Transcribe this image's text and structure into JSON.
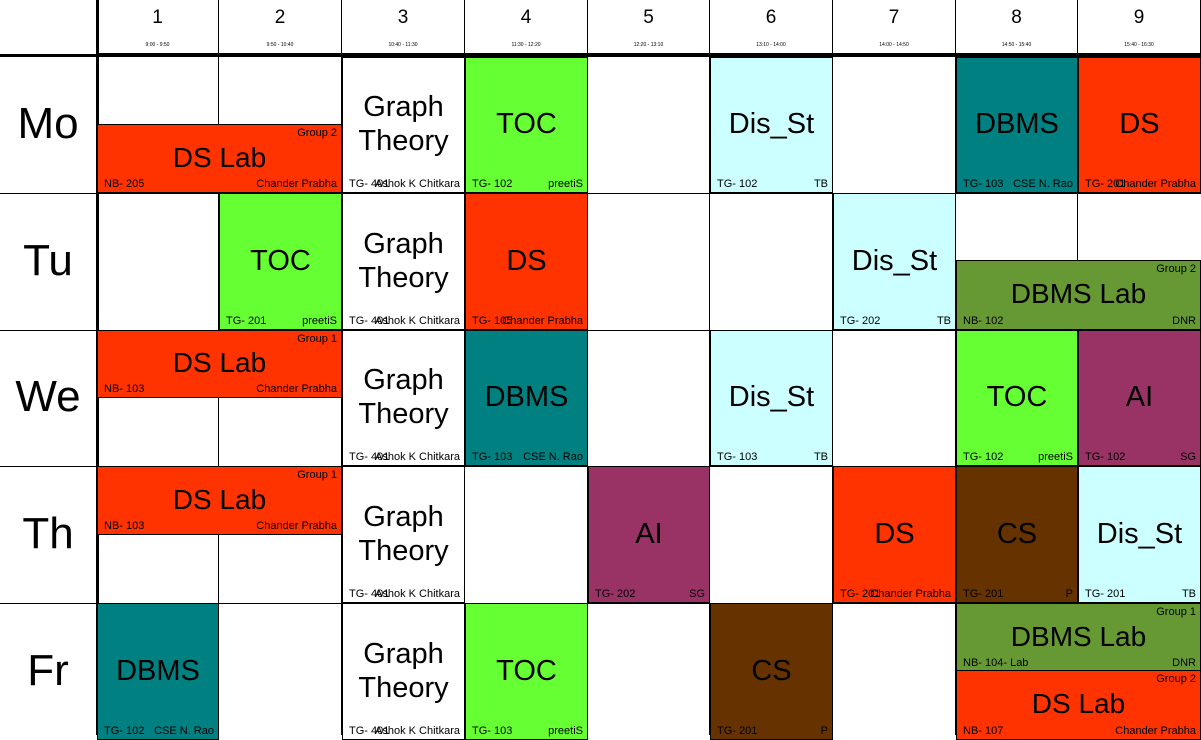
{
  "colors": {
    "ds": "#ff3300",
    "toc": "#66ff33",
    "dbms": "#008080",
    "disst": "#ccffff",
    "ai": "#993366",
    "cs": "#663300",
    "dbms_lab": "#669933",
    "white": "#ffffff"
  },
  "periods": [
    {
      "num": "1",
      "time": "9:00 - 9:50"
    },
    {
      "num": "2",
      "time": "9:50 - 10:40"
    },
    {
      "num": "3",
      "time": "10:40 - 11:30"
    },
    {
      "num": "4",
      "time": "11:30 - 12:20"
    },
    {
      "num": "5",
      "time": "12:20 - 13:10"
    },
    {
      "num": "6",
      "time": "13:10 - 14:00"
    },
    {
      "num": "7",
      "time": "14:00 - 14:50"
    },
    {
      "num": "8",
      "time": "14:50 - 15:40"
    },
    {
      "num": "9",
      "time": "15:40 - 16:30"
    }
  ],
  "days": [
    "Mo",
    "Tu",
    "We",
    "Th",
    "Fr"
  ],
  "blocks": [
    {
      "day": 0,
      "col": 1,
      "span": 2,
      "half": "bottom",
      "subject": "DS Lab",
      "room": "NB- 205",
      "teacher": "Chander Prabha",
      "group": "Group 2",
      "color": "ds"
    },
    {
      "day": 0,
      "col": 3,
      "span": 1,
      "subject": "Graph\nTheory",
      "room": "TG- 401",
      "teacher": "Ashok K Chitkara",
      "color": "white"
    },
    {
      "day": 0,
      "col": 4,
      "span": 1,
      "subject": "TOC",
      "room": "TG- 102",
      "teacher": "preetiS",
      "color": "toc"
    },
    {
      "day": 0,
      "col": 6,
      "span": 1,
      "subject": "Dis_St",
      "room": "TG- 102",
      "teacher": "TB",
      "color": "disst"
    },
    {
      "day": 0,
      "col": 8,
      "span": 1,
      "subject": "DBMS",
      "room": "TG- 103",
      "teacher": "CSE N. Rao",
      "color": "dbms"
    },
    {
      "day": 0,
      "col": 9,
      "span": 1,
      "subject": "DS",
      "room": "TG- 201",
      "teacher": "Chander Prabha",
      "color": "ds"
    },
    {
      "day": 1,
      "col": 2,
      "span": 1,
      "subject": "TOC",
      "room": "TG- 201",
      "teacher": "preetiS",
      "color": "toc"
    },
    {
      "day": 1,
      "col": 3,
      "span": 1,
      "subject": "Graph\nTheory",
      "room": "TG- 401",
      "teacher": "Ashok K Chitkara",
      "color": "white"
    },
    {
      "day": 1,
      "col": 4,
      "span": 1,
      "subject": "DS",
      "room": "TG- 105",
      "teacher": "Chander Prabha",
      "color": "ds"
    },
    {
      "day": 1,
      "col": 7,
      "span": 1,
      "subject": "Dis_St",
      "room": "TG- 202",
      "teacher": "TB",
      "color": "disst"
    },
    {
      "day": 1,
      "col": 8,
      "span": 2,
      "half": "bottom",
      "subject": "DBMS Lab",
      "room": "NB- 102",
      "teacher": "DNR",
      "group": "Group 2",
      "color": "dbms_lab"
    },
    {
      "day": 2,
      "col": 1,
      "span": 2,
      "half": "top",
      "subject": "DS Lab",
      "room": "NB- 103",
      "teacher": "Chander Prabha",
      "group": "Group 1",
      "color": "ds"
    },
    {
      "day": 2,
      "col": 3,
      "span": 1,
      "subject": "Graph\nTheory",
      "room": "TG- 401",
      "teacher": "Ashok K Chitkara",
      "color": "white"
    },
    {
      "day": 2,
      "col": 4,
      "span": 1,
      "subject": "DBMS",
      "room": "TG- 103",
      "teacher": "CSE N. Rao",
      "color": "dbms"
    },
    {
      "day": 2,
      "col": 6,
      "span": 1,
      "subject": "Dis_St",
      "room": "TG- 103",
      "teacher": "TB",
      "color": "disst"
    },
    {
      "day": 2,
      "col": 8,
      "span": 1,
      "subject": "TOC",
      "room": "TG- 102",
      "teacher": "preetiS",
      "color": "toc"
    },
    {
      "day": 2,
      "col": 9,
      "span": 1,
      "subject": "AI",
      "room": "TG- 102",
      "teacher": "SG",
      "color": "ai"
    },
    {
      "day": 3,
      "col": 1,
      "span": 2,
      "half": "top",
      "subject": "DS Lab",
      "room": "NB- 103",
      "teacher": "Chander Prabha",
      "group": "Group 1",
      "color": "ds"
    },
    {
      "day": 3,
      "col": 3,
      "span": 1,
      "subject": "Graph\nTheory",
      "room": "TG- 401",
      "teacher": "Ashok K Chitkara",
      "color": "white"
    },
    {
      "day": 3,
      "col": 5,
      "span": 1,
      "subject": "AI",
      "room": "TG- 202",
      "teacher": "SG",
      "color": "ai"
    },
    {
      "day": 3,
      "col": 7,
      "span": 1,
      "subject": "DS",
      "room": "TG- 201",
      "teacher": "Chander Prabha",
      "color": "ds"
    },
    {
      "day": 3,
      "col": 8,
      "span": 1,
      "subject": "CS",
      "room": "TG- 201",
      "teacher": "P",
      "color": "cs"
    },
    {
      "day": 3,
      "col": 9,
      "span": 1,
      "subject": "Dis_St",
      "room": "TG- 201",
      "teacher": "TB",
      "color": "disst"
    },
    {
      "day": 4,
      "col": 1,
      "span": 1,
      "subject": "DBMS",
      "room": "TG- 102",
      "teacher": "CSE N. Rao",
      "color": "dbms"
    },
    {
      "day": 4,
      "col": 3,
      "span": 1,
      "subject": "Graph\nTheory",
      "room": "TG- 401",
      "teacher": "Ashok K Chitkara",
      "color": "white"
    },
    {
      "day": 4,
      "col": 4,
      "span": 1,
      "subject": "TOC",
      "room": "TG- 103",
      "teacher": "preetiS",
      "color": "toc"
    },
    {
      "day": 4,
      "col": 6,
      "span": 1,
      "subject": "CS",
      "room": "TG- 201",
      "teacher": "P",
      "color": "cs"
    },
    {
      "day": 4,
      "col": 8,
      "span": 2,
      "half": "top",
      "subject": "DBMS Lab",
      "room": "NB- 104- Lab",
      "teacher": "DNR",
      "group": "Group 1",
      "color": "dbms_lab"
    },
    {
      "day": 4,
      "col": 8,
      "span": 2,
      "half": "bottom",
      "subject": "DS Lab",
      "room": "NB- 107",
      "teacher": "Chander Prabha",
      "group": "Group 2",
      "color": "ds"
    }
  ]
}
